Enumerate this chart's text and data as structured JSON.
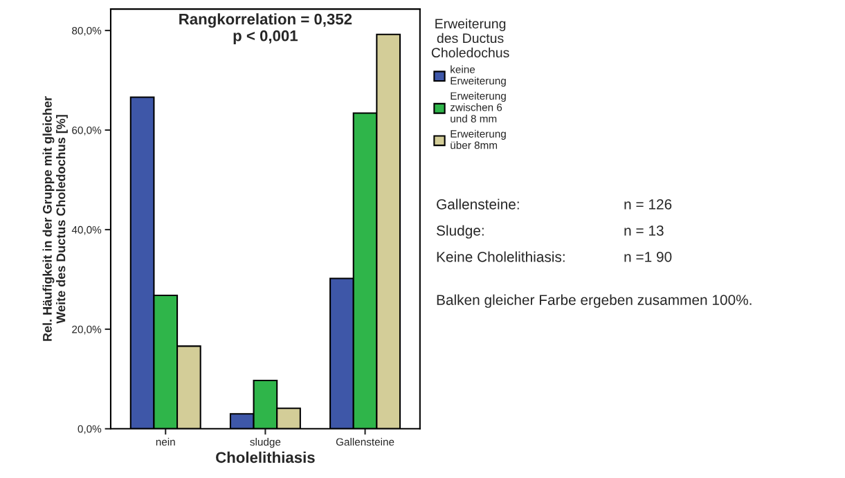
{
  "chart_data": {
    "type": "bar",
    "xlabel": "Cholelithiasis",
    "ylabel": "Rel. Häufigkeit in der Gruppe mit gleicher\nWeite des Ductus Choledochus [%]",
    "legend_title": "Erweiterung\ndes Ductus\nCholedochus",
    "categories": [
      "nein",
      "sludge",
      "Gallensteine"
    ],
    "series": [
      {
        "name": "keine\nErweiterung",
        "color": "#3e57a8",
        "values": [
          66.6,
          3.0,
          30.2
        ]
      },
      {
        "name": "Erweiterung\nzwischen 6\nund 8 mm",
        "color": "#2fb54a",
        "values": [
          26.8,
          9.7,
          63.4
        ]
      },
      {
        "name": "Erweiterung\nüber 8mm",
        "color": "#d3cd98",
        "values": [
          16.6,
          4.1,
          79.2
        ]
      }
    ],
    "ylim": [
      0,
      84.3
    ],
    "yticks": [
      {
        "value": 0,
        "label": "0,0%"
      },
      {
        "value": 20,
        "label": "20,0%"
      },
      {
        "value": 40,
        "label": "40,0%"
      },
      {
        "value": 60,
        "label": "60,0%"
      },
      {
        "value": 80,
        "label": "80,0%"
      }
    ],
    "grid": false,
    "legend": "right",
    "annotations": [
      "Rangkorrelation = 0,352\np < 0,001",
      "Gallensteine:",
      "n = 126",
      "Sludge:",
      "n = 13",
      "Keine Cholelithiasis:",
      "n =1 90",
      "Balken gleicher Farbe ergeben zusammen 100%."
    ]
  }
}
